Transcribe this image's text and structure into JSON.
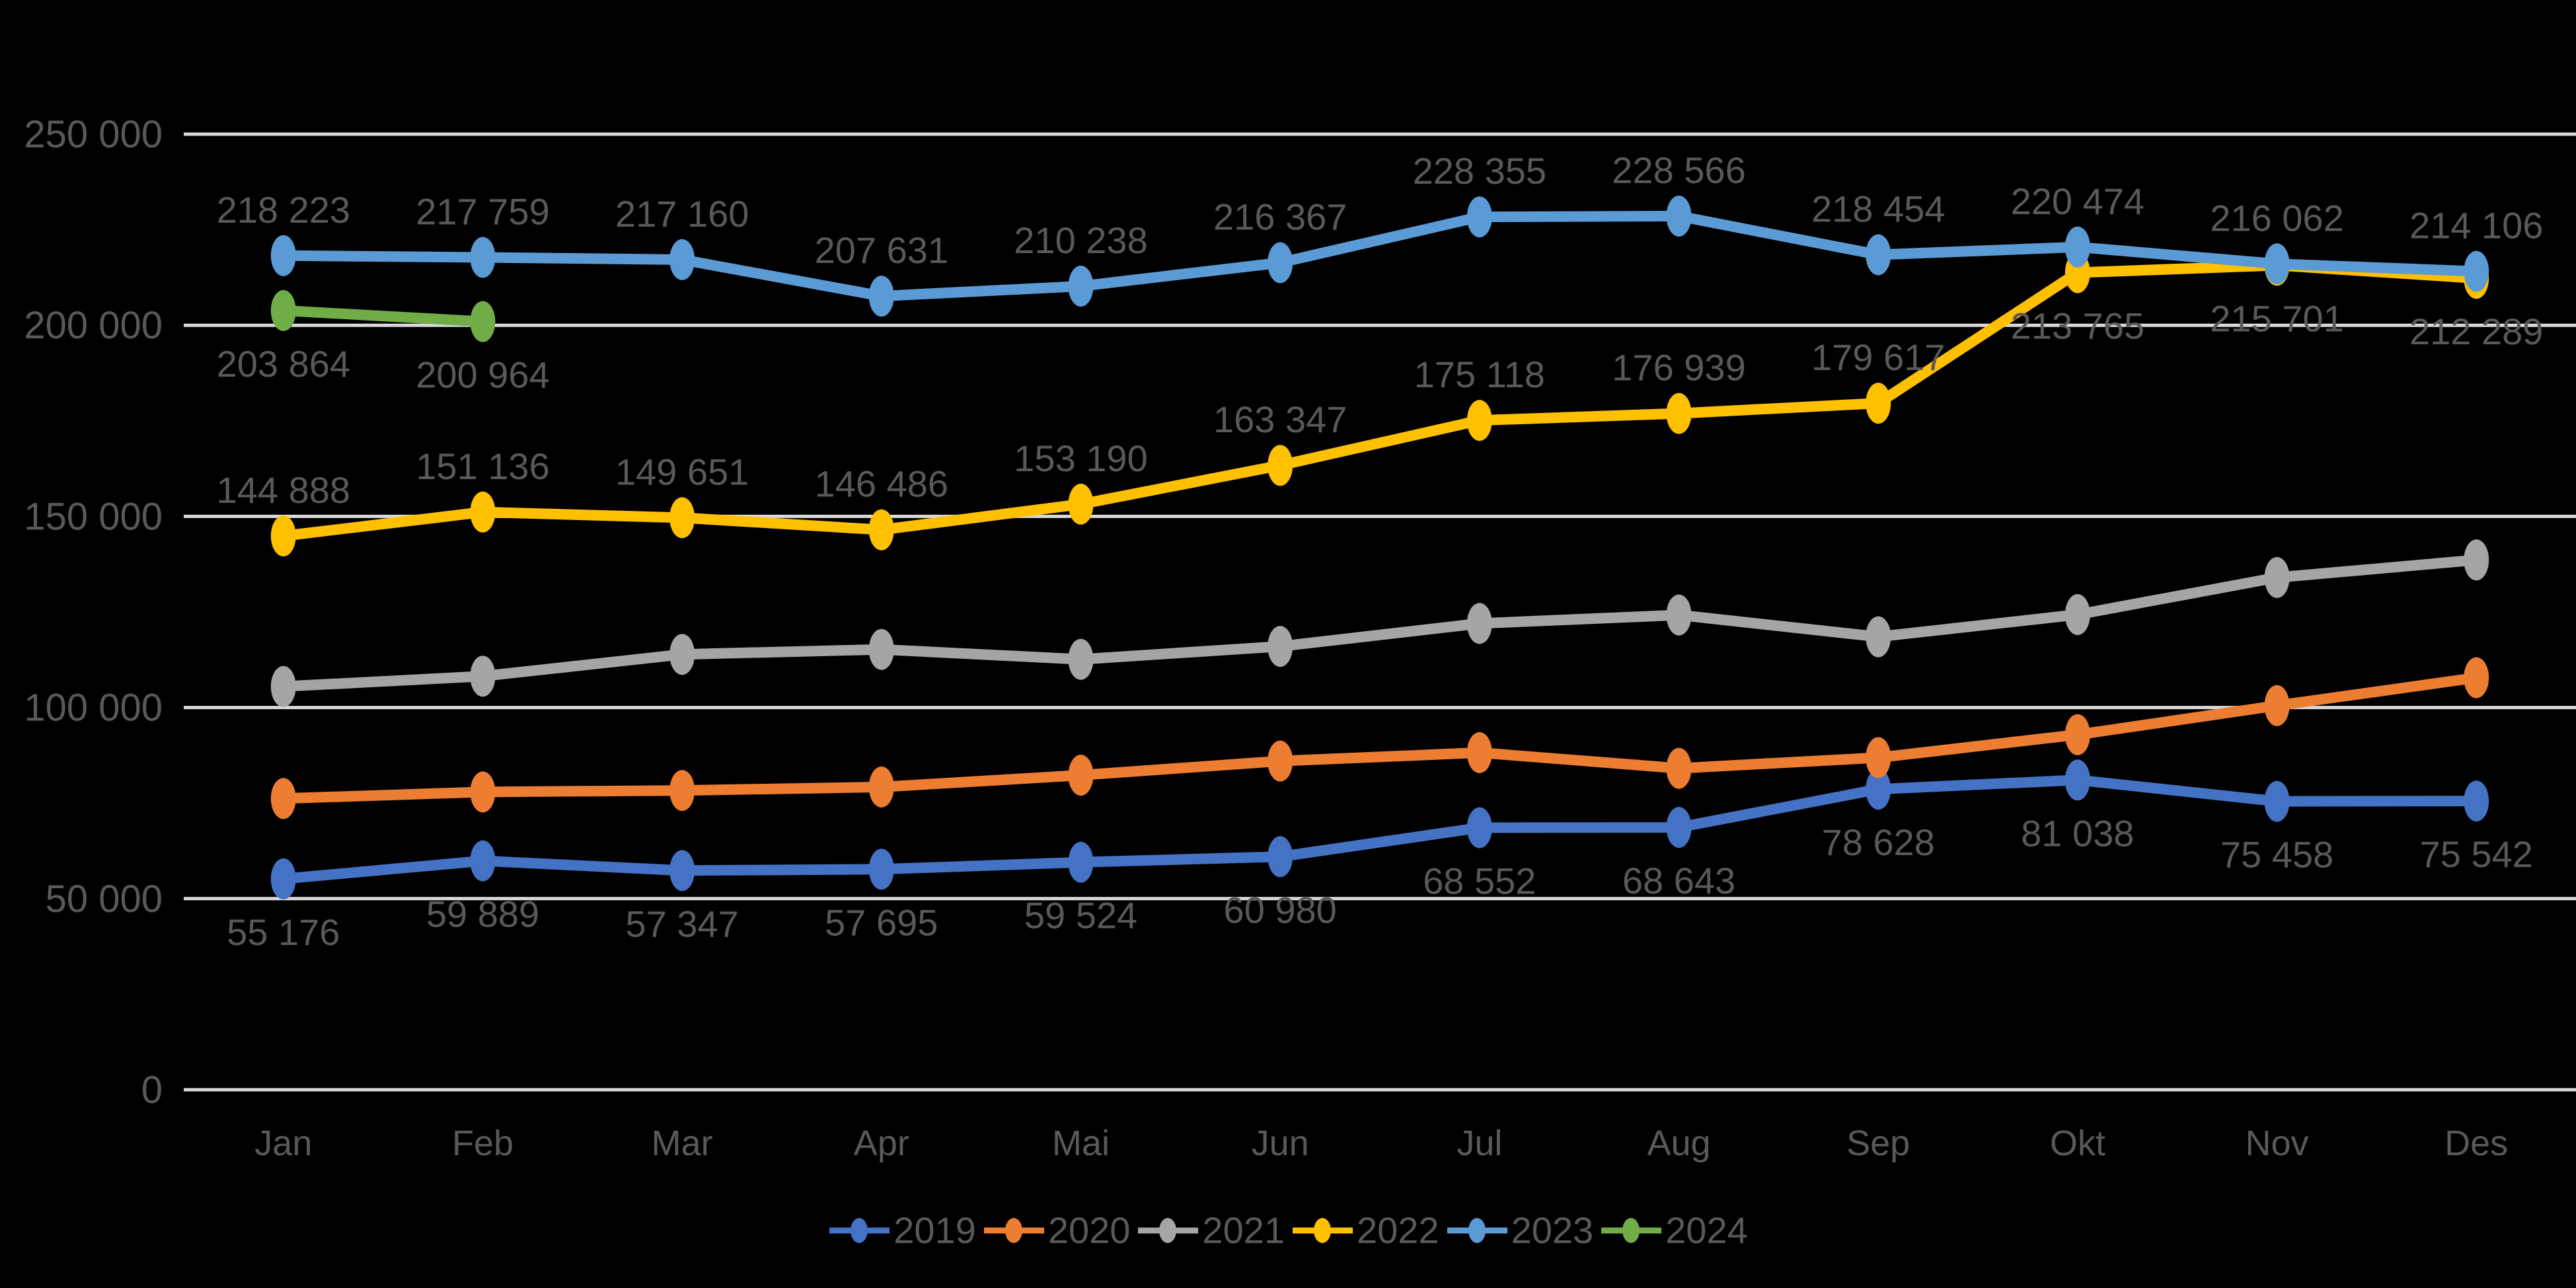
{
  "chart_data": {
    "type": "line",
    "title": "",
    "xlabel": "",
    "ylabel": "",
    "categories": [
      "Jan",
      "Feb",
      "Mar",
      "Apr",
      "Mai",
      "Jun",
      "Jul",
      "Aug",
      "Sep",
      "Okt",
      "Nov",
      "Des"
    ],
    "y_axis": {
      "min": 0,
      "max": 250000,
      "tick_step": 50000,
      "tick_labels": [
        "0",
        "50 000",
        "100 000",
        "150 000",
        "200 000",
        "250 000"
      ]
    },
    "grid": true,
    "legend_position": "bottom",
    "series": [
      {
        "name": "2019",
        "color": "#4472C4",
        "values": [
          55176,
          59889,
          57347,
          57695,
          59524,
          60980,
          68552,
          68643,
          78628,
          81038,
          75458,
          75542
        ],
        "labels_shown": true,
        "label_position": "below"
      },
      {
        "name": "2020",
        "color": "#ED7D31",
        "values": [
          76200,
          77900,
          78300,
          79200,
          82300,
          86000,
          88200,
          84100,
          86900,
          92900,
          100500,
          107800
        ],
        "labels_shown": false,
        "label_position": "none"
      },
      {
        "name": "2021",
        "color": "#A5A5A5",
        "values": [
          105500,
          108200,
          113900,
          115200,
          112600,
          116000,
          122000,
          124200,
          118500,
          124300,
          134000,
          138600
        ],
        "labels_shown": false,
        "label_position": "none"
      },
      {
        "name": "2022",
        "color": "#FFC000",
        "values": [
          144888,
          151136,
          149651,
          146486,
          153190,
          163347,
          175118,
          176939,
          179617,
          213765,
          215701,
          212289
        ],
        "labels_shown": true,
        "label_position": "above",
        "label_position_overrides": {
          "9": "below",
          "10": "below",
          "11": "below"
        }
      },
      {
        "name": "2023",
        "color": "#5B9BD5",
        "values": [
          218223,
          217759,
          217160,
          207631,
          210238,
          216367,
          228355,
          228566,
          218454,
          220474,
          216062,
          214106
        ],
        "labels_shown": true,
        "label_position": "above"
      },
      {
        "name": "2024",
        "color": "#70AD47",
        "values": [
          203864,
          200964
        ],
        "labels_shown": true,
        "label_position": "below"
      }
    ],
    "colors": {
      "background": "#000000",
      "gridline": "#D9D9D9",
      "label_text": "#595959"
    }
  }
}
